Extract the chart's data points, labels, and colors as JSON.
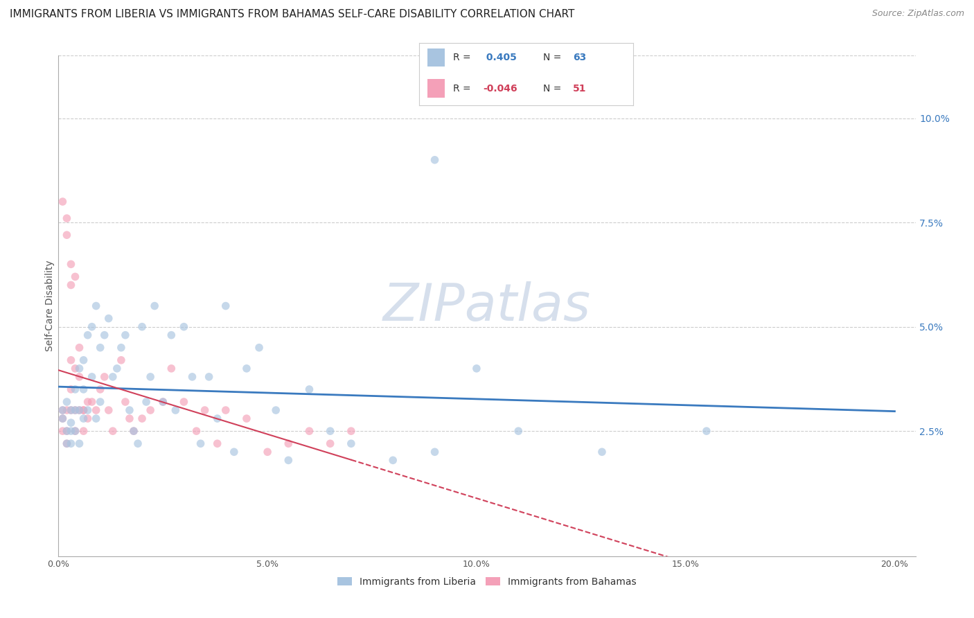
{
  "title": "IMMIGRANTS FROM LIBERIA VS IMMIGRANTS FROM BAHAMAS SELF-CARE DISABILITY CORRELATION CHART",
  "source": "Source: ZipAtlas.com",
  "ylabel": "Self-Care Disability",
  "xlabel_liberia": "Immigrants from Liberia",
  "xlabel_bahamas": "Immigrants from Bahamas",
  "xlim": [
    0.0,
    0.205
  ],
  "ylim": [
    -0.005,
    0.115
  ],
  "xticks": [
    0.0,
    0.05,
    0.1,
    0.15,
    0.2
  ],
  "xtick_labels": [
    "0.0%",
    "5.0%",
    "10.0%",
    "15.0%",
    "20.0%"
  ],
  "yticks_right": [
    0.025,
    0.05,
    0.075,
    0.1
  ],
  "ytick_labels_right": [
    "2.5%",
    "5.0%",
    "7.5%",
    "10.0%"
  ],
  "liberia_R": 0.405,
  "liberia_N": 63,
  "bahamas_R": -0.046,
  "bahamas_N": 51,
  "liberia_color": "#a8c4e0",
  "liberia_line_color": "#3a7abf",
  "bahamas_color": "#f4a0b8",
  "bahamas_line_color": "#d0405a",
  "marker_size": 70,
  "marker_alpha": 0.65,
  "grid_color": "#cccccc",
  "grid_style": "--",
  "background_color": "#ffffff",
  "watermark": "ZIPatlas",
  "watermark_color": "#ccd8e8",
  "title_fontsize": 11,
  "source_fontsize": 9,
  "axis_fontsize": 9,
  "legend_fontsize": 10,
  "liberia_x": [
    0.001,
    0.001,
    0.002,
    0.002,
    0.002,
    0.003,
    0.003,
    0.003,
    0.003,
    0.004,
    0.004,
    0.004,
    0.005,
    0.005,
    0.005,
    0.006,
    0.006,
    0.006,
    0.007,
    0.007,
    0.008,
    0.008,
    0.009,
    0.009,
    0.01,
    0.01,
    0.011,
    0.012,
    0.013,
    0.014,
    0.015,
    0.016,
    0.017,
    0.018,
    0.019,
    0.02,
    0.021,
    0.022,
    0.023,
    0.025,
    0.027,
    0.028,
    0.03,
    0.032,
    0.034,
    0.036,
    0.038,
    0.04,
    0.042,
    0.045,
    0.048,
    0.052,
    0.055,
    0.06,
    0.065,
    0.07,
    0.08,
    0.09,
    0.1,
    0.11,
    0.13,
    0.155,
    0.09
  ],
  "liberia_y": [
    0.03,
    0.028,
    0.025,
    0.032,
    0.022,
    0.027,
    0.03,
    0.025,
    0.022,
    0.03,
    0.035,
    0.025,
    0.04,
    0.03,
    0.022,
    0.042,
    0.035,
    0.028,
    0.048,
    0.03,
    0.05,
    0.038,
    0.055,
    0.028,
    0.045,
    0.032,
    0.048,
    0.052,
    0.038,
    0.04,
    0.045,
    0.048,
    0.03,
    0.025,
    0.022,
    0.05,
    0.032,
    0.038,
    0.055,
    0.032,
    0.048,
    0.03,
    0.05,
    0.038,
    0.022,
    0.038,
    0.028,
    0.055,
    0.02,
    0.04,
    0.045,
    0.03,
    0.018,
    0.035,
    0.025,
    0.022,
    0.018,
    0.02,
    0.04,
    0.025,
    0.02,
    0.025,
    0.09
  ],
  "bahamas_x": [
    0.001,
    0.001,
    0.001,
    0.002,
    0.002,
    0.002,
    0.003,
    0.003,
    0.003,
    0.004,
    0.004,
    0.004,
    0.005,
    0.005,
    0.006,
    0.006,
    0.007,
    0.007,
    0.008,
    0.009,
    0.01,
    0.011,
    0.012,
    0.013,
    0.015,
    0.016,
    0.017,
    0.018,
    0.02,
    0.022,
    0.025,
    0.027,
    0.03,
    0.033,
    0.035,
    0.038,
    0.04,
    0.045,
    0.05,
    0.055,
    0.06,
    0.065,
    0.07,
    0.001,
    0.002,
    0.002,
    0.003,
    0.003,
    0.004,
    0.005,
    0.006
  ],
  "bahamas_y": [
    0.03,
    0.028,
    0.025,
    0.03,
    0.025,
    0.022,
    0.042,
    0.035,
    0.03,
    0.04,
    0.03,
    0.025,
    0.038,
    0.03,
    0.03,
    0.025,
    0.032,
    0.028,
    0.032,
    0.03,
    0.035,
    0.038,
    0.03,
    0.025,
    0.042,
    0.032,
    0.028,
    0.025,
    0.028,
    0.03,
    0.032,
    0.04,
    0.032,
    0.025,
    0.03,
    0.022,
    0.03,
    0.028,
    0.02,
    0.022,
    0.025,
    0.022,
    0.025,
    0.08,
    0.076,
    0.072,
    0.065,
    0.06,
    0.062,
    0.045,
    0.03
  ]
}
